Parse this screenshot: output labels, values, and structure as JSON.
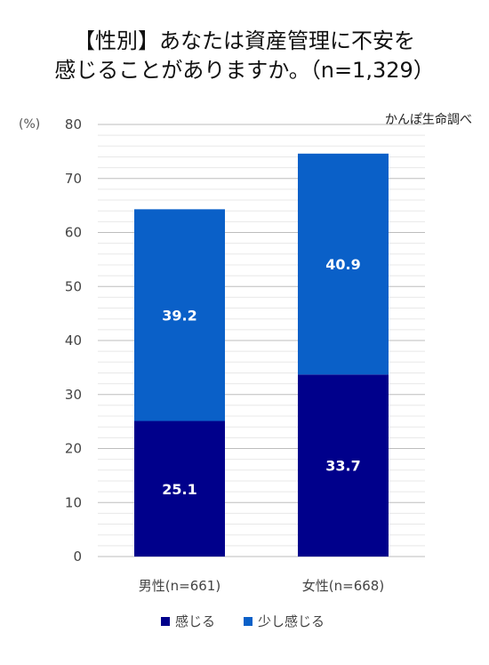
{
  "chart_data": {
    "type": "bar",
    "stacked": true,
    "title_lines": [
      "【性別】あなたは資産管理に不安を",
      "感じることがありますか。（n=1,329）"
    ],
    "source": "かんぽ生命調べ",
    "yunit": "(%)",
    "ylim": [
      0,
      80
    ],
    "yticks": [
      0,
      10,
      20,
      30,
      40,
      50,
      60,
      70,
      80
    ],
    "grid": true,
    "legend_position": "bottom",
    "categories": [
      "男性(n=661)",
      "女性(n=668)"
    ],
    "series": [
      {
        "name": "感じる",
        "values": [
          25.1,
          33.7
        ],
        "labels": [
          "25.1",
          "33.7"
        ],
        "color": "#00008b"
      },
      {
        "name": "少し感じる",
        "values": [
          39.2,
          40.9
        ],
        "labels": [
          "39.2",
          "40.9"
        ],
        "color": "#0a60c8"
      }
    ]
  }
}
